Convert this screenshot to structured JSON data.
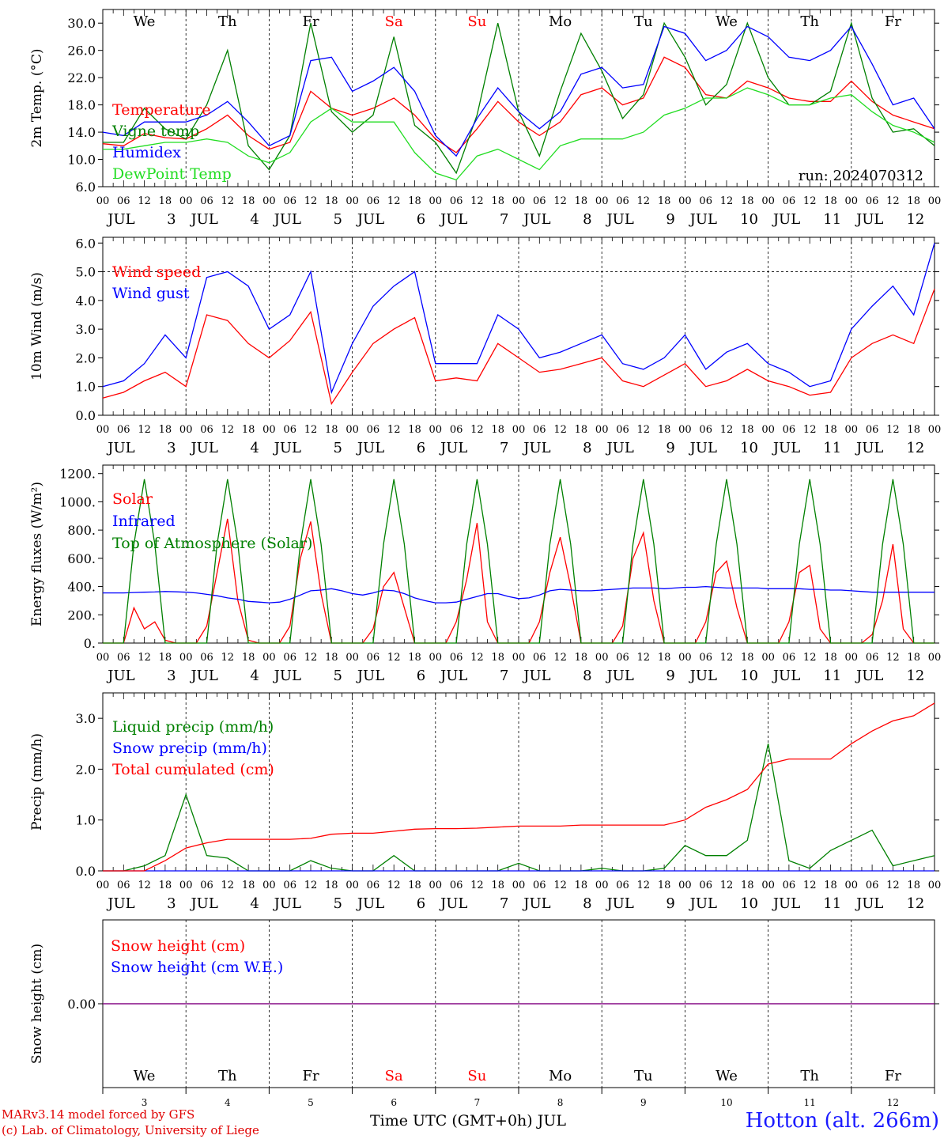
{
  "station": "Hotton (alt. 266m)",
  "footer": {
    "model": "MARv3.14 model forced by GFS",
    "lab": "(c) Lab. of Climatology, University of Liege"
  },
  "time_axis": {
    "days": [
      "3",
      "4",
      "5",
      "6",
      "7",
      "8",
      "9",
      "10",
      "11",
      "12"
    ],
    "month": "JUL",
    "hours": [
      "00",
      "06",
      "12",
      "18"
    ],
    "weekdays": [
      "We",
      "Th",
      "Fr",
      "Sa",
      "Su",
      "Mo",
      "Tu",
      "We",
      "Th",
      "Fr"
    ],
    "weekend_flags": [
      false,
      false,
      false,
      true,
      true,
      false,
      false,
      false,
      false,
      false
    ],
    "xlabel": "Time UTC (GMT+0h) JUL"
  },
  "colors": {
    "red": "#ff0000",
    "dark_green": "#008000",
    "blue": "#0000ff",
    "light_green": "#22dd22",
    "purple": "#800080"
  },
  "chart_data": [
    {
      "type": "line",
      "ylabel": "2m Temp. (°C)",
      "ylim": [
        6,
        32
      ],
      "yticks": [
        6,
        10,
        14,
        18,
        22,
        26,
        30
      ],
      "ytick_labels": [
        "6.0",
        "10.0",
        "14.0",
        "18.0",
        "22.0",
        "26.0",
        "30.0"
      ],
      "annotation": "run: 2024070312",
      "x_hours": [
        0,
        6,
        12,
        18,
        24,
        30,
        36,
        42,
        48,
        54,
        60,
        66,
        72,
        78,
        84,
        90,
        96,
        102,
        108,
        114,
        120,
        126,
        132,
        138,
        144,
        150,
        156,
        162,
        168,
        174,
        180,
        186,
        192,
        198,
        204,
        210,
        216,
        222,
        228,
        234,
        240
      ],
      "series": [
        {
          "name": "Temperature",
          "color": "red",
          "values": [
            12.3,
            12.0,
            13.8,
            13.2,
            13.0,
            14.5,
            16.5,
            13.5,
            11.5,
            12.5,
            20.0,
            17.5,
            16.5,
            17.5,
            19.0,
            16.5,
            13.0,
            11.0,
            14.5,
            18.5,
            15.5,
            13.5,
            15.5,
            19.5,
            20.5,
            18.0,
            19.0,
            25.0,
            23.5,
            19.5,
            19.0,
            21.5,
            20.5,
            19.0,
            18.5,
            18.5,
            21.5,
            18.5,
            16.5,
            15.5,
            14.5
          ]
        },
        {
          "name": "Vigne temp",
          "color": "dark_green",
          "values": [
            12.5,
            12.5,
            17.5,
            14.5,
            13.0,
            18.0,
            26.0,
            12.0,
            8.5,
            13.5,
            30.0,
            17.0,
            14.0,
            16.5,
            28.0,
            15.0,
            12.5,
            8.0,
            16.5,
            30.0,
            17.0,
            10.5,
            20.0,
            28.5,
            23.0,
            16.0,
            19.5,
            30.0,
            25.0,
            18.0,
            21.0,
            30.0,
            22.0,
            18.0,
            18.0,
            20.0,
            30.0,
            19.0,
            14.0,
            14.5,
            12.0
          ]
        },
        {
          "name": "Humidex",
          "color": "blue",
          "values": [
            14.0,
            13.5,
            15.5,
            15.5,
            15.5,
            16.5,
            18.5,
            15.5,
            12.0,
            13.5,
            24.5,
            25.0,
            20.0,
            21.5,
            23.5,
            20.0,
            13.5,
            10.5,
            16.0,
            20.5,
            17.0,
            14.5,
            17.0,
            22.5,
            23.5,
            20.5,
            21.0,
            29.5,
            28.5,
            24.5,
            26.0,
            29.5,
            28.0,
            25.0,
            24.5,
            26.0,
            29.5,
            24.0,
            18.0,
            19.0,
            14.5
          ]
        },
        {
          "name": "DewPoint Temp",
          "color": "light_green",
          "values": [
            11.5,
            11.5,
            12.0,
            12.5,
            12.5,
            13.0,
            12.5,
            10.5,
            9.5,
            11.0,
            15.5,
            17.5,
            15.5,
            15.5,
            15.5,
            11.0,
            8.0,
            7.0,
            10.5,
            11.5,
            10.0,
            8.5,
            12.0,
            13.0,
            13.0,
            13.0,
            14.0,
            16.5,
            17.5,
            19.0,
            19.0,
            20.5,
            19.5,
            18.0,
            18.0,
            19.0,
            19.5,
            17.0,
            15.0,
            14.0,
            12.5
          ]
        }
      ]
    },
    {
      "type": "line",
      "ylabel": "10m Wind (m/s)",
      "ylim": [
        0,
        6.2
      ],
      "yticks": [
        0,
        1,
        2,
        3,
        4,
        5,
        6
      ],
      "ytick_labels": [
        "0.0",
        "1.0",
        "2.0",
        "3.0",
        "4.0",
        "5.0",
        "6.0"
      ],
      "reference_line": 5.0,
      "x_hours": [
        0,
        6,
        12,
        18,
        24,
        30,
        36,
        42,
        48,
        54,
        60,
        66,
        72,
        78,
        84,
        90,
        96,
        102,
        108,
        114,
        120,
        126,
        132,
        138,
        144,
        150,
        156,
        162,
        168,
        174,
        180,
        186,
        192,
        198,
        204,
        210,
        216,
        222,
        228,
        234,
        240
      ],
      "series": [
        {
          "name": "Wind speed",
          "color": "red",
          "values": [
            0.6,
            0.8,
            1.2,
            1.5,
            1.0,
            3.5,
            3.3,
            2.5,
            2.0,
            2.6,
            3.6,
            0.4,
            1.5,
            2.5,
            3.0,
            3.4,
            1.2,
            1.3,
            1.2,
            2.5,
            2.0,
            1.5,
            1.6,
            1.8,
            2.0,
            1.2,
            1.0,
            1.4,
            1.8,
            1.0,
            1.2,
            1.6,
            1.2,
            1.0,
            0.7,
            0.8,
            2.0,
            2.5,
            2.8,
            2.5,
            4.4
          ]
        },
        {
          "name": "Wind gust",
          "color": "blue",
          "values": [
            1.0,
            1.2,
            1.8,
            2.8,
            2.0,
            4.8,
            5.0,
            4.5,
            3.0,
            3.5,
            5.0,
            0.8,
            2.5,
            3.8,
            4.5,
            5.0,
            1.8,
            1.8,
            1.8,
            3.5,
            3.0,
            2.0,
            2.2,
            2.5,
            2.8,
            1.8,
            1.6,
            2.0,
            2.8,
            1.6,
            2.2,
            2.5,
            1.8,
            1.5,
            1.0,
            1.2,
            3.0,
            3.8,
            4.5,
            3.5,
            6.0
          ]
        }
      ]
    },
    {
      "type": "line",
      "ylabel": "Energy fluxes (W/m²)",
      "ylim": [
        0,
        1260
      ],
      "yticks": [
        0,
        200,
        400,
        600,
        800,
        1000,
        1200
      ],
      "ytick_labels": [
        "0.",
        "200.",
        "400.",
        "600.",
        "800.",
        "1000.",
        "1200."
      ],
      "x_hours": [
        0,
        3,
        6,
        9,
        12,
        15,
        18,
        21,
        24,
        27,
        30,
        33,
        36,
        39,
        42,
        45,
        48,
        51,
        54,
        57,
        60,
        63,
        66,
        69,
        72,
        75,
        78,
        81,
        84,
        87,
        90,
        93,
        96,
        99,
        102,
        105,
        108,
        111,
        114,
        117,
        120,
        123,
        126,
        129,
        132,
        135,
        138,
        141,
        144,
        147,
        150,
        153,
        156,
        159,
        162,
        165,
        168,
        171,
        174,
        177,
        180,
        183,
        186,
        189,
        192,
        195,
        198,
        201,
        204,
        207,
        210,
        213,
        216,
        219,
        222,
        225,
        228,
        231,
        234,
        237,
        240
      ],
      "series": [
        {
          "name": "Solar",
          "color": "red",
          "values": [
            0,
            0,
            0,
            250,
            100,
            150,
            20,
            0,
            0,
            0,
            120,
            500,
            880,
            300,
            20,
            0,
            0,
            0,
            120,
            600,
            860,
            350,
            0,
            0,
            0,
            0,
            100,
            400,
            500,
            250,
            0,
            0,
            0,
            0,
            150,
            450,
            850,
            150,
            0,
            0,
            0,
            0,
            150,
            500,
            750,
            400,
            0,
            0,
            0,
            0,
            120,
            600,
            780,
            300,
            0,
            0,
            0,
            0,
            150,
            500,
            580,
            250,
            0,
            0,
            0,
            0,
            150,
            500,
            550,
            100,
            0,
            0,
            0,
            0,
            60,
            300,
            700,
            100,
            0,
            0,
            0
          ]
        },
        {
          "name": "Infrared",
          "color": "blue",
          "values": [
            355,
            355,
            355,
            358,
            360,
            362,
            365,
            363,
            360,
            355,
            345,
            335,
            320,
            310,
            295,
            290,
            285,
            290,
            310,
            340,
            370,
            375,
            385,
            370,
            350,
            340,
            355,
            375,
            370,
            350,
            320,
            300,
            285,
            285,
            290,
            310,
            330,
            350,
            350,
            330,
            315,
            320,
            340,
            370,
            380,
            375,
            370,
            370,
            375,
            380,
            385,
            390,
            390,
            390,
            385,
            390,
            395,
            395,
            400,
            395,
            390,
            390,
            390,
            390,
            385,
            385,
            385,
            385,
            380,
            380,
            375,
            375,
            370,
            365,
            360,
            360,
            360,
            360,
            360,
            360,
            360
          ]
        },
        {
          "name": "Top of Atmosphere (Solar)",
          "color": "dark_green",
          "values": [
            0,
            0,
            0,
            700,
            1160,
            700,
            0,
            0,
            0,
            0,
            0,
            700,
            1160,
            700,
            0,
            0,
            0,
            0,
            0,
            700,
            1160,
            700,
            0,
            0,
            0,
            0,
            0,
            700,
            1160,
            700,
            0,
            0,
            0,
            0,
            0,
            700,
            1160,
            700,
            0,
            0,
            0,
            0,
            0,
            700,
            1160,
            700,
            0,
            0,
            0,
            0,
            0,
            700,
            1160,
            700,
            0,
            0,
            0,
            0,
            0,
            700,
            1160,
            700,
            0,
            0,
            0,
            0,
            0,
            700,
            1160,
            700,
            0,
            0,
            0,
            0,
            0,
            700,
            1160,
            700,
            0,
            0,
            0
          ]
        }
      ]
    },
    {
      "type": "line",
      "ylabel": "Precip (mm/h)",
      "ylim": [
        0,
        3.5
      ],
      "yticks": [
        0,
        1,
        2,
        3
      ],
      "ytick_labels": [
        "0.0",
        "1.0",
        "2.0",
        "3.0"
      ],
      "x_hours": [
        0,
        6,
        12,
        18,
        24,
        30,
        36,
        42,
        48,
        54,
        60,
        66,
        72,
        78,
        84,
        90,
        96,
        102,
        108,
        114,
        120,
        126,
        132,
        138,
        144,
        150,
        156,
        162,
        168,
        174,
        180,
        186,
        192,
        198,
        204,
        210,
        216,
        222,
        228,
        234,
        240
      ],
      "series": [
        {
          "name": "Liquid precip (mm/h)",
          "color": "dark_green",
          "values": [
            0,
            0,
            0.1,
            0.3,
            1.5,
            0.3,
            0.25,
            0,
            0,
            0,
            0.2,
            0.05,
            0,
            0,
            0.3,
            0,
            0,
            0,
            0,
            0,
            0.15,
            0,
            0,
            0,
            0.05,
            0,
            0,
            0.05,
            0.5,
            0.3,
            0.3,
            0.6,
            2.5,
            0.2,
            0.05,
            0.4,
            0.6,
            0.8,
            0.1,
            0.2,
            0.3
          ]
        },
        {
          "name": "Snow precip (mm/h)",
          "color": "blue",
          "values": [
            0,
            0,
            0,
            0,
            0,
            0,
            0,
            0,
            0,
            0,
            0,
            0,
            0,
            0,
            0,
            0,
            0,
            0,
            0,
            0,
            0,
            0,
            0,
            0,
            0,
            0,
            0,
            0,
            0,
            0,
            0,
            0,
            0,
            0,
            0,
            0,
            0,
            0,
            0,
            0,
            0
          ]
        },
        {
          "name": "Total cumulated (cm)",
          "color": "red",
          "values": [
            0,
            0,
            0,
            0.2,
            0.45,
            0.55,
            0.62,
            0.62,
            0.62,
            0.62,
            0.64,
            0.72,
            0.74,
            0.74,
            0.78,
            0.82,
            0.83,
            0.83,
            0.84,
            0.86,
            0.88,
            0.88,
            0.88,
            0.9,
            0.9,
            0.9,
            0.9,
            0.9,
            1.0,
            1.25,
            1.4,
            1.6,
            2.1,
            2.2,
            2.2,
            2.2,
            2.5,
            2.75,
            2.95,
            3.05,
            3.3
          ]
        }
      ]
    },
    {
      "type": "line",
      "ylabel": "Snow height (cm)",
      "ylim": [
        -1,
        1
      ],
      "yticks": [
        0
      ],
      "ytick_labels": [
        "0.00"
      ],
      "x_hours": [
        0,
        240
      ],
      "series": [
        {
          "name": "Snow height (cm)",
          "color": "red",
          "values": [
            0,
            0
          ]
        },
        {
          "name": "Snow height (cm W.E.)",
          "color": "blue",
          "values": [
            0,
            0
          ]
        }
      ]
    }
  ]
}
